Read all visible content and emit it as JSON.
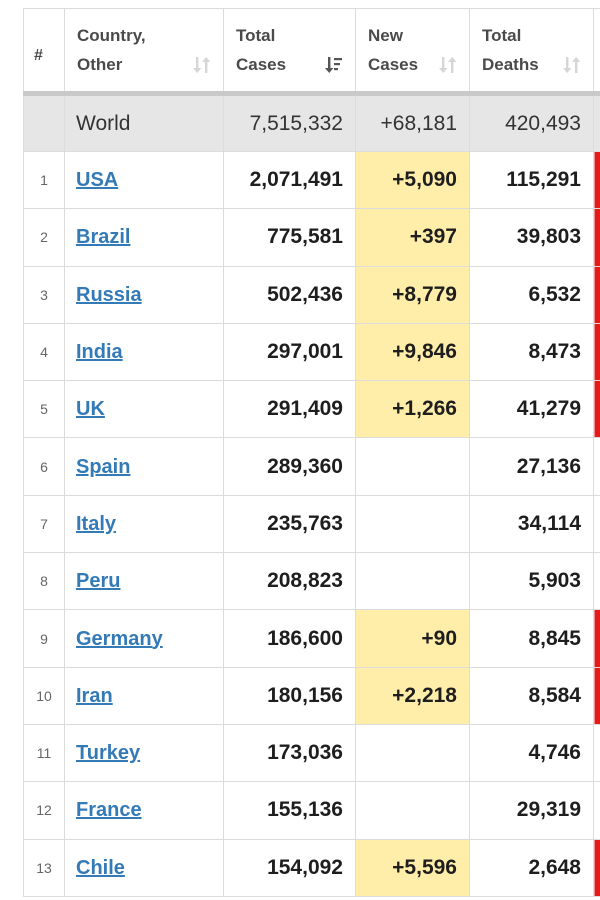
{
  "headers": {
    "rank": "#",
    "country": [
      "Country,",
      "Other"
    ],
    "total_cases": [
      "Total",
      "Cases"
    ],
    "new_cases": [
      "New",
      "Cases"
    ],
    "total_deaths": [
      "Total",
      "Deaths"
    ]
  },
  "colors": {
    "highlight": "#ffeeaa",
    "deaths_flag": "#e31b1b",
    "link": "#337ab7",
    "world_row": "#e6e6e6"
  },
  "icons": {
    "sort_default": "sort-updown-icon",
    "sort_active": "sort-descending-icon"
  },
  "world": {
    "name": "World",
    "total_cases": "7,515,332",
    "new_cases": "+68,181",
    "total_deaths": "420,493"
  },
  "rows": [
    {
      "rank": "1",
      "country": "USA",
      "total_cases": "2,071,491",
      "new_cases": "+5,090",
      "total_deaths": "115,291",
      "new_deaths_flag": true
    },
    {
      "rank": "2",
      "country": "Brazil",
      "total_cases": "775,581",
      "new_cases": "+397",
      "total_deaths": "39,803",
      "new_deaths_flag": true
    },
    {
      "rank": "3",
      "country": "Russia",
      "total_cases": "502,436",
      "new_cases": "+8,779",
      "total_deaths": "6,532",
      "new_deaths_flag": true
    },
    {
      "rank": "4",
      "country": "India",
      "total_cases": "297,001",
      "new_cases": "+9,846",
      "total_deaths": "8,473",
      "new_deaths_flag": true
    },
    {
      "rank": "5",
      "country": "UK",
      "total_cases": "291,409",
      "new_cases": "+1,266",
      "total_deaths": "41,279",
      "new_deaths_flag": true
    },
    {
      "rank": "6",
      "country": "Spain",
      "total_cases": "289,360",
      "new_cases": "",
      "total_deaths": "27,136",
      "new_deaths_flag": false
    },
    {
      "rank": "7",
      "country": "Italy",
      "total_cases": "235,763",
      "new_cases": "",
      "total_deaths": "34,114",
      "new_deaths_flag": false
    },
    {
      "rank": "8",
      "country": "Peru",
      "total_cases": "208,823",
      "new_cases": "",
      "total_deaths": "5,903",
      "new_deaths_flag": false
    },
    {
      "rank": "9",
      "country": "Germany",
      "total_cases": "186,600",
      "new_cases": "+90",
      "total_deaths": "8,845",
      "new_deaths_flag": true
    },
    {
      "rank": "10",
      "country": "Iran",
      "total_cases": "180,156",
      "new_cases": "+2,218",
      "total_deaths": "8,584",
      "new_deaths_flag": true
    },
    {
      "rank": "11",
      "country": "Turkey",
      "total_cases": "173,036",
      "new_cases": "",
      "total_deaths": "4,746",
      "new_deaths_flag": false
    },
    {
      "rank": "12",
      "country": "France",
      "total_cases": "155,136",
      "new_cases": "",
      "total_deaths": "29,319",
      "new_deaths_flag": false
    },
    {
      "rank": "13",
      "country": "Chile",
      "total_cases": "154,092",
      "new_cases": "+5,596",
      "total_deaths": "2,648",
      "new_deaths_flag": true
    }
  ]
}
